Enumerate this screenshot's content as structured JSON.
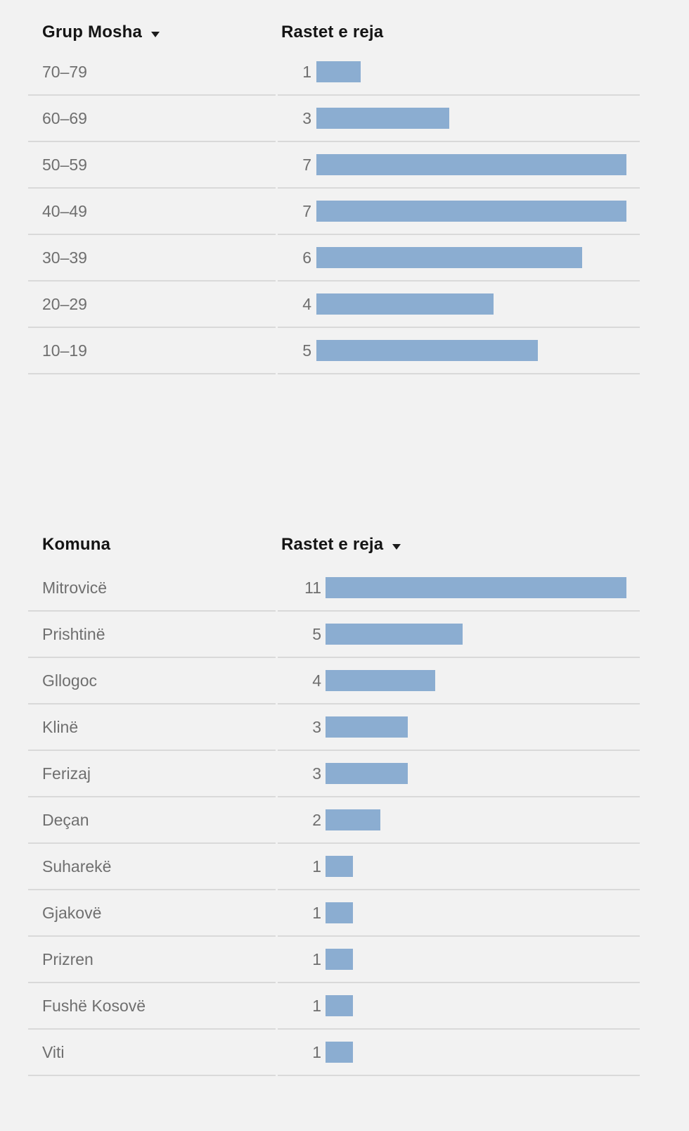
{
  "page": {
    "background_color": "#f2f2f2",
    "bar_color": "#8badd1",
    "divider_color": "#d9d9d9",
    "sort_arrow_icon": "triangle-down"
  },
  "chart_data": [
    {
      "type": "bar",
      "orientation": "horizontal",
      "title": "",
      "column_headers": [
        "Grup Mosha",
        "Rastet e reja"
      ],
      "sorted_column": "Grup Mosha",
      "sort_arrow_on": "label-column",
      "categories": [
        "70–79",
        "60–69",
        "50–59",
        "40–49",
        "30–39",
        "20–29",
        "10–19"
      ],
      "values": [
        1,
        3,
        7,
        7,
        6,
        4,
        5
      ],
      "xlim": [
        0,
        7
      ],
      "grid": false,
      "legend": false
    },
    {
      "type": "bar",
      "orientation": "horizontal",
      "title": "",
      "column_headers": [
        "Komuna",
        "Rastet e reja"
      ],
      "sorted_column": "Rastet e reja",
      "sort_arrow_on": "value-column",
      "categories": [
        "Mitrovicë",
        "Prishtinë",
        "Gllogoc",
        "Klinë",
        "Ferizaj",
        "Deçan",
        "Suharekë",
        "Gjakovë",
        "Prizren",
        "Fushë Kosovë",
        "Viti"
      ],
      "values": [
        11,
        5,
        4,
        3,
        3,
        2,
        1,
        1,
        1,
        1,
        1
      ],
      "xlim": [
        0,
        11
      ],
      "grid": false,
      "legend": false
    }
  ]
}
